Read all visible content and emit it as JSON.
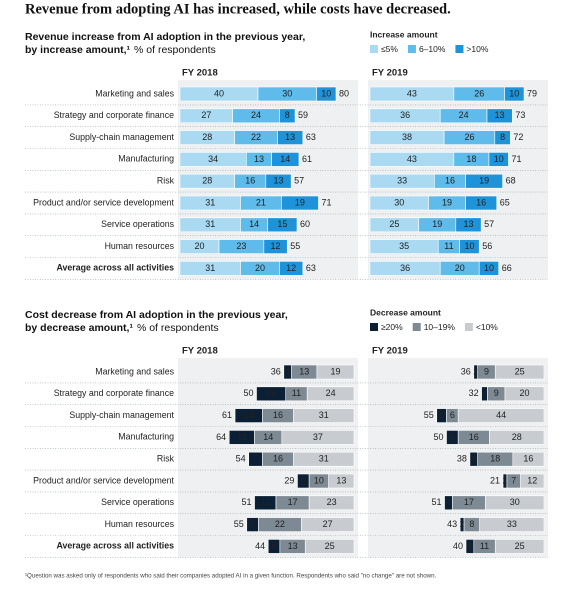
{
  "title": "Revenue from adopting AI has increased, while costs have decreased.",
  "footnote": "¹Question was asked only of respondents who said their companies adopted AI in a given function. Respondents who said \"no change\" are not shown.",
  "chart_data": [
    {
      "type": "bar",
      "orientation": "horizontal",
      "stacked": true,
      "bar_align": "left",
      "title": "Revenue increase from AI adoption in the previous year,",
      "title_line2": "by increase amount,¹",
      "subtitle": "% of respondents",
      "legend_title": "Increase amount",
      "categories": [
        "Marketing and sales",
        "Strategy and corporate finance",
        "Supply-chain management",
        "Manufacturing",
        "Risk",
        "Product and/or service development",
        "Service operations",
        "Human resources",
        "Average across all activities"
      ],
      "series": [
        {
          "name": "≤5%",
          "color": "#a9daf2",
          "label_color": "#222"
        },
        {
          "name": "6–10%",
          "color": "#5fbbe9",
          "label_color": "#222"
        },
        {
          "name": ">10%",
          "color": "#1f93da",
          "label_color": "#222"
        }
      ],
      "panels": [
        {
          "label": "FY 2018",
          "values": [
            [
              40,
              27,
              28,
              34,
              28,
              31,
              31,
              20,
              31
            ],
            [
              30,
              24,
              22,
              13,
              16,
              21,
              14,
              23,
              20
            ],
            [
              10,
              8,
              13,
              14,
              13,
              19,
              15,
              12,
              12
            ]
          ],
          "totals": [
            80,
            59,
            63,
            61,
            57,
            71,
            60,
            55,
            63
          ]
        },
        {
          "label": "FY 2019",
          "values": [
            [
              43,
              36,
              38,
              43,
              33,
              30,
              25,
              35,
              36
            ],
            [
              26,
              24,
              26,
              18,
              16,
              19,
              19,
              11,
              20
            ],
            [
              10,
              13,
              8,
              10,
              19,
              16,
              13,
              10,
              10
            ]
          ],
          "totals": [
            79,
            73,
            72,
            71,
            68,
            65,
            57,
            56,
            66
          ]
        }
      ]
    },
    {
      "type": "bar",
      "orientation": "horizontal",
      "stacked": true,
      "bar_align": "right",
      "title": "Cost decrease from AI adoption in the previous year,",
      "title_line2": "by decrease amount,¹",
      "subtitle": "% of respondents",
      "legend_title": "Decrease amount",
      "categories": [
        "Marketing and sales",
        "Strategy and corporate finance",
        "Supply-chain management",
        "Manufacturing",
        "Risk",
        "Product and/or service development",
        "Service operations",
        "Human resources",
        "Average across all activities"
      ],
      "series": [
        {
          "name": "≥20%",
          "color": "#0b1f35",
          "label_color": "#fff"
        },
        {
          "name": "10–19%",
          "color": "#7d8993",
          "label_color": "#fff"
        },
        {
          "name": "<10%",
          "color": "#c8ccd0",
          "label_color": "#222"
        }
      ],
      "panels": [
        {
          "label": "FY 2018",
          "values": [
            [
              4,
              15,
              14,
              13,
              7,
              6,
              11,
              6,
              6
            ],
            [
              13,
              11,
              16,
              14,
              16,
              10,
              17,
              22,
              13
            ],
            [
              19,
              24,
              31,
              37,
              31,
              13,
              23,
              27,
              25
            ]
          ],
          "totals": [
            36,
            50,
            61,
            64,
            54,
            29,
            51,
            55,
            44
          ]
        },
        {
          "label": "FY 2019",
          "values": [
            [
              2,
              3,
              5,
              6,
              4,
              2,
              4,
              2,
              4
            ],
            [
              9,
              9,
              6,
              16,
              18,
              7,
              17,
              8,
              11
            ],
            [
              25,
              20,
              44,
              28,
              16,
              12,
              30,
              33,
              25
            ]
          ],
          "totals": [
            36,
            32,
            55,
            50,
            38,
            21,
            51,
            43,
            40
          ]
        }
      ]
    }
  ]
}
